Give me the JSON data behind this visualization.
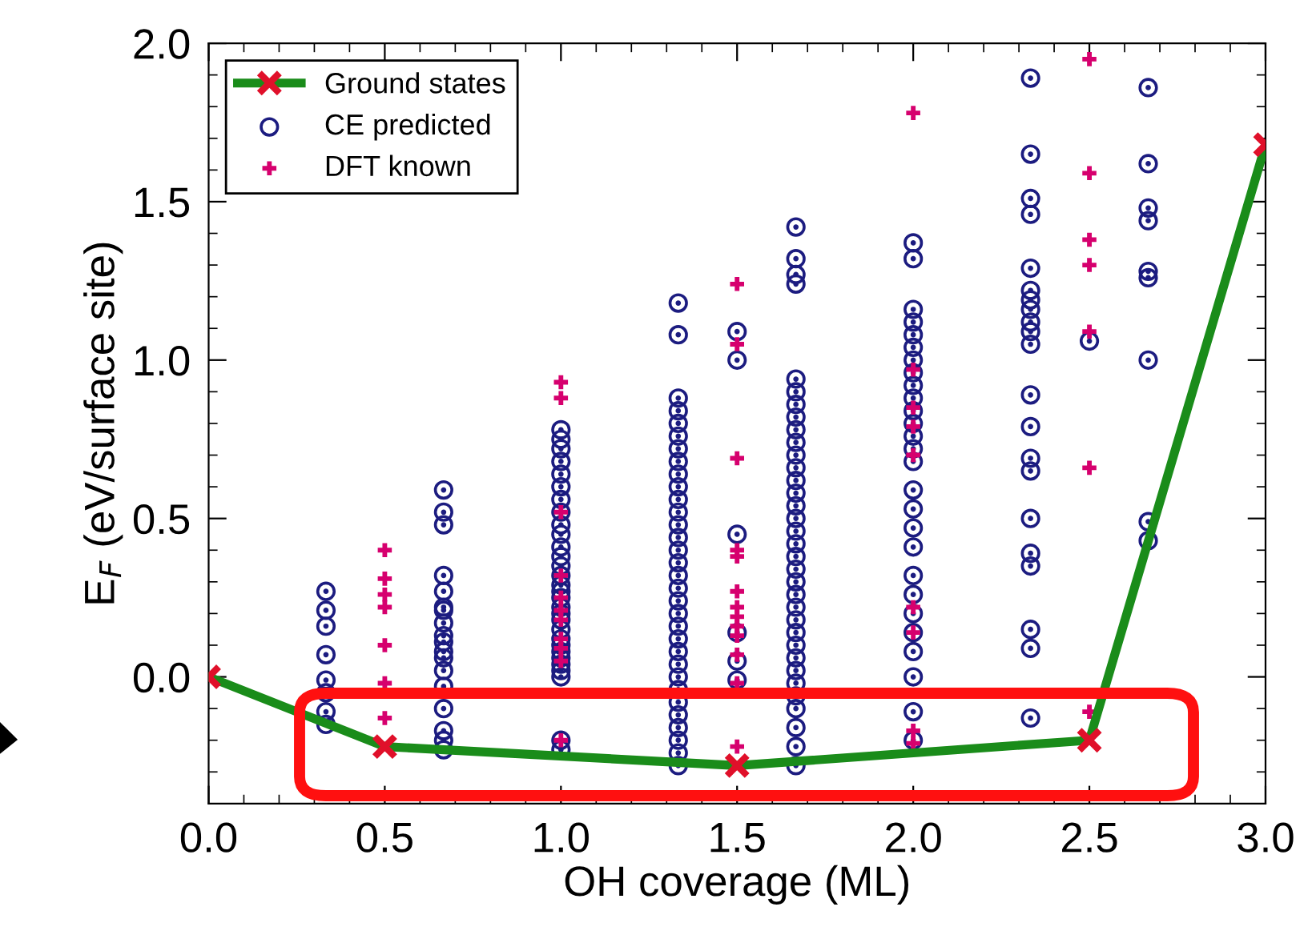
{
  "chart_data": {
    "type": "scatter",
    "xlabel": "OH coverage (ML)",
    "ylabel": "E$_{F}$ (eV/surface site)",
    "xlim": [
      0,
      3
    ],
    "ylim": [
      -0.4,
      2.0
    ],
    "xticks": [
      {
        "value": 0,
        "label": "0.0"
      },
      {
        "value": 0.5,
        "label": "0.5"
      },
      {
        "value": 1,
        "label": "1.0"
      },
      {
        "value": 1.5,
        "label": "1.5"
      },
      {
        "value": 2,
        "label": "2.0"
      },
      {
        "value": 2.5,
        "label": "2.5"
      },
      {
        "value": 3,
        "label": "3.0"
      }
    ],
    "yticks": [
      {
        "value": 0,
        "label": "0.0"
      },
      {
        "value": 0.5,
        "label": "0.5"
      },
      {
        "value": 1,
        "label": "1.0"
      },
      {
        "value": 1.5,
        "label": "1.5"
      },
      {
        "value": 2,
        "label": "2.0"
      }
    ],
    "legend": "top left",
    "grid": false,
    "series": [
      {
        "name": "Ground states",
        "type": "line",
        "color": "#1a8c1a",
        "marker": "cross",
        "line_style": "solid",
        "x": [
          0,
          0.5,
          1.5,
          2.5,
          3.0
        ],
        "values": [
          0.0,
          -0.22,
          -0.28,
          -0.2,
          1.68
        ]
      },
      {
        "name": "CE predicted",
        "color": "#1c1c80",
        "marker": "circle",
        "x": [
          0.333,
          0.333,
          0.333,
          0.333,
          0.333,
          0.333,
          0.333,
          0.333,
          0.667,
          0.667,
          0.667,
          0.667,
          0.667,
          0.667,
          0.667,
          0.667,
          0.667,
          0.667,
          0.667,
          0.667,
          0.667,
          0.667,
          0.667,
          0.667,
          0.667,
          0.667,
          1,
          1,
          1,
          1,
          1,
          1,
          1,
          1,
          1,
          1,
          1,
          1,
          1,
          1,
          1,
          1,
          1,
          1,
          1,
          1,
          1,
          1,
          1,
          1,
          1,
          1,
          1,
          1,
          1,
          1,
          1.333,
          1.333,
          1.333,
          1.333,
          1.333,
          1.333,
          1.333,
          1.333,
          1.333,
          1.333,
          1.333,
          1.333,
          1.333,
          1.333,
          1.333,
          1.333,
          1.333,
          1.333,
          1.333,
          1.333,
          1.333,
          1.333,
          1.333,
          1.333,
          1.333,
          1.333,
          1.333,
          1.333,
          1.333,
          1.333,
          1.333,
          1.333,
          1.5,
          1.5,
          1.5,
          1.5,
          1.5,
          1.5,
          1.667,
          1.667,
          1.667,
          1.667,
          1.667,
          1.667,
          1.667,
          1.667,
          1.667,
          1.667,
          1.667,
          1.667,
          1.667,
          1.667,
          1.667,
          1.667,
          1.667,
          1.667,
          1.667,
          1.667,
          1.667,
          1.667,
          1.667,
          1.667,
          1.667,
          1.667,
          1.667,
          1.667,
          1.667,
          1.667,
          1.667,
          1.667,
          1.667,
          1.667,
          2,
          2,
          2,
          2,
          2,
          2,
          2,
          2,
          2,
          2,
          2,
          2,
          2,
          2,
          2,
          2,
          2,
          2,
          2,
          2,
          2,
          2,
          2,
          2,
          2,
          2,
          2,
          2.333,
          2.333,
          2.333,
          2.333,
          2.333,
          2.333,
          2.333,
          2.333,
          2.333,
          2.333,
          2.333,
          2.333,
          2.333,
          2.333,
          2.333,
          2.333,
          2.333,
          2.333,
          2.333,
          2.333,
          2.333,
          2.5,
          2.667,
          2.667,
          2.667,
          2.667,
          2.667,
          2.667,
          2.667,
          2.667,
          2.667
        ],
        "values": [
          0.27,
          0.21,
          0.16,
          0.07,
          -0.01,
          -0.05,
          -0.11,
          -0.15,
          0.59,
          0.52,
          0.48,
          0.32,
          0.27,
          0.22,
          0.21,
          0.17,
          0.13,
          0.11,
          0.08,
          0.06,
          0.02,
          -0.03,
          -0.1,
          -0.17,
          -0.2,
          -0.23,
          0.78,
          0.75,
          0.72,
          0.68,
          0.64,
          0.6,
          0.56,
          0.52,
          0.48,
          0.45,
          0.41,
          0.38,
          0.35,
          0.32,
          0.29,
          0.27,
          0.25,
          0.22,
          0.2,
          0.18,
          0.15,
          0.12,
          0.1,
          0.08,
          0.06,
          0.04,
          0.02,
          0.0,
          -0.2,
          -0.23,
          1.18,
          1.08,
          0.88,
          0.84,
          0.8,
          0.76,
          0.72,
          0.68,
          0.64,
          0.6,
          0.56,
          0.52,
          0.48,
          0.44,
          0.4,
          0.36,
          0.32,
          0.28,
          0.24,
          0.2,
          0.16,
          0.12,
          0.08,
          0.04,
          0.0,
          -0.04,
          -0.08,
          -0.12,
          -0.16,
          -0.2,
          -0.24,
          -0.28,
          1.09,
          1.0,
          0.45,
          0.14,
          0.05,
          -0.01,
          1.42,
          1.32,
          1.27,
          1.24,
          0.94,
          0.9,
          0.86,
          0.82,
          0.78,
          0.74,
          0.7,
          0.66,
          0.62,
          0.58,
          0.54,
          0.5,
          0.46,
          0.42,
          0.38,
          0.34,
          0.3,
          0.26,
          0.22,
          0.18,
          0.14,
          0.1,
          0.06,
          0.02,
          -0.02,
          -0.06,
          -0.1,
          -0.16,
          -0.22,
          -0.28,
          1.37,
          1.32,
          1.16,
          1.12,
          1.08,
          1.04,
          1.0,
          0.96,
          0.92,
          0.88,
          0.84,
          0.8,
          0.76,
          0.72,
          0.68,
          0.59,
          0.53,
          0.47,
          0.41,
          0.32,
          0.26,
          0.2,
          0.14,
          0.08,
          0.0,
          -0.11,
          -0.2,
          1.89,
          1.65,
          1.51,
          1.46,
          1.29,
          1.22,
          1.19,
          1.16,
          1.12,
          1.09,
          1.05,
          0.89,
          0.79,
          0.69,
          0.65,
          0.5,
          0.39,
          0.35,
          0.15,
          0.09,
          -0.13,
          1.06,
          1.86,
          1.62,
          1.48,
          1.44,
          1.28,
          1.26,
          1.0,
          0.49,
          0.43
        ]
      },
      {
        "name": "DFT known",
        "color": "#d6006e",
        "marker": "cross",
        "x": [
          0.5,
          0.5,
          0.5,
          0.5,
          0.5,
          0.5,
          0.5,
          1,
          1,
          1,
          1,
          1,
          1,
          1,
          1,
          1,
          1,
          1,
          1.5,
          1.5,
          1.5,
          1.5,
          1.5,
          1.5,
          1.5,
          1.5,
          1.5,
          1.5,
          1.5,
          1.5,
          1.5,
          2,
          2,
          2,
          2,
          2,
          2,
          2,
          2,
          2,
          2.5,
          2.5,
          2.5,
          2.5,
          2.5,
          2.5,
          2.5
        ],
        "values": [
          0.4,
          0.31,
          0.26,
          0.22,
          0.1,
          -0.02,
          -0.13,
          0.93,
          0.88,
          0.52,
          0.32,
          0.25,
          0.21,
          0.18,
          0.12,
          0.09,
          0.05,
          -0.2,
          1.24,
          1.05,
          0.69,
          0.4,
          0.38,
          0.27,
          0.22,
          0.19,
          0.16,
          0.13,
          0.07,
          -0.02,
          -0.22,
          1.78,
          0.97,
          0.85,
          0.79,
          0.7,
          0.22,
          0.14,
          -0.17,
          -0.21,
          1.95,
          1.59,
          1.38,
          1.3,
          1.09,
          0.66,
          -0.11
        ]
      }
    ]
  }
}
